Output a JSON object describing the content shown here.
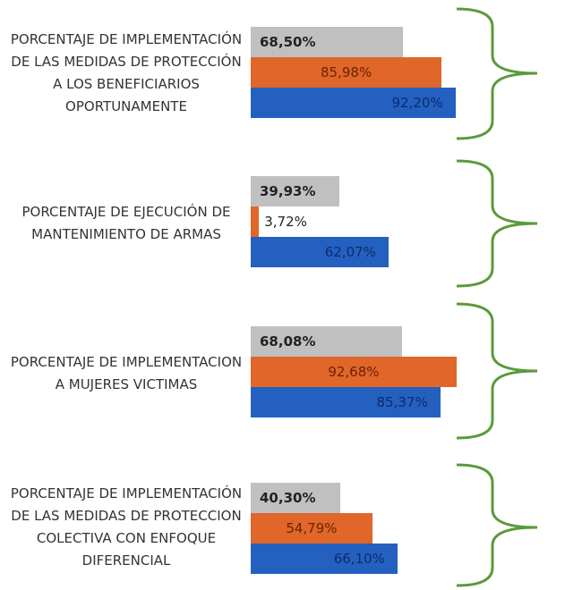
{
  "chart_data": {
    "type": "bar",
    "orientation": "horizontal",
    "categories": [
      "PORCENTAJE DE IMPLEMENTACIÓN DE LAS MEDIDAS DE PROTECCIÓN A LOS BENEFICIARIOS OPORTUNAMENTE",
      "PORCENTAJE DE EJECUCIÓN DE MANTENIMIENTO DE ARMAS",
      "PORCENTAJE DE IMPLEMENTACION A MUJERES VICTIMAS",
      "PORCENTAJE DE IMPLEMENTACIÓN DE LAS MEDIDAS DE PROTECCION COLECTIVA CON ENFOQUE DIFERENCIAL"
    ],
    "series": [
      {
        "color": "#c0c0c0",
        "values": [
          68.5,
          39.93,
          68.08,
          40.3
        ],
        "value_labels": [
          "68,50%",
          "39,93%",
          "68,08%",
          "40,30%"
        ]
      },
      {
        "color": "#e0662a",
        "values": [
          85.98,
          3.72,
          92.68,
          54.79
        ],
        "value_labels": [
          "85,98%",
          "3,72%",
          "92,68%",
          "54,79%"
        ]
      },
      {
        "color": "#2460c0",
        "values": [
          92.2,
          62.07,
          85.37,
          66.1
        ],
        "value_labels": [
          "92,20%",
          "62,07%",
          "85,37%",
          "66,10%"
        ]
      }
    ]
  }
}
